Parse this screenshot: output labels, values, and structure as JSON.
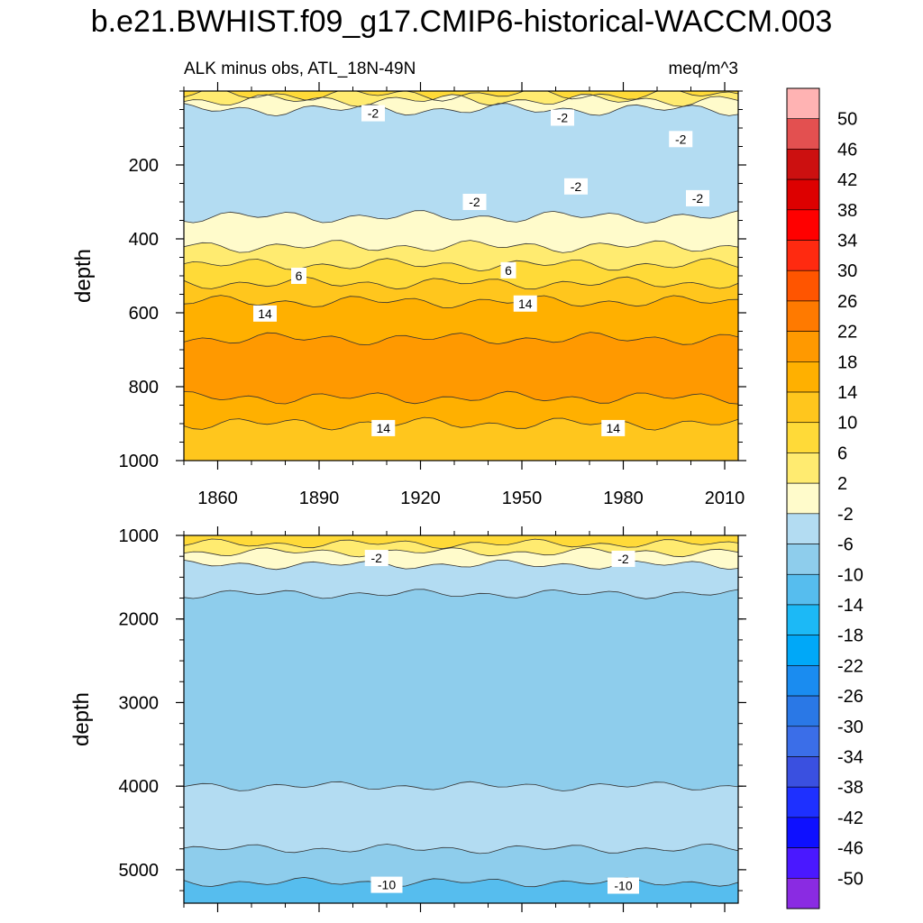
{
  "title": "b.e21.BWHIST.f09_g17.CMIP6-historical-WACCM.003",
  "chart_data": [
    {
      "type": "contour",
      "panel": "upper",
      "left_string": "ALK minus obs, ATL_18N-49N",
      "right_string": "meq/m^3",
      "ylabel": "depth",
      "xlim": [
        1850,
        2014
      ],
      "ylim": [
        1000,
        0
      ],
      "x_ticks": [
        1860,
        1890,
        1920,
        1950,
        1980,
        2010
      ],
      "y_ticks": [
        200,
        400,
        600,
        800,
        1000
      ],
      "bands": [
        {
          "top": 0,
          "bottom": 10,
          "fill": "#ffda38"
        },
        {
          "top": 10,
          "bottom": 25,
          "fill": "#ffeb70"
        },
        {
          "top": 25,
          "bottom": 50,
          "fill": "#fffbcb"
        },
        {
          "top": 50,
          "bottom": 340,
          "fill": "#b3dcf2"
        },
        {
          "top": 340,
          "bottom": 420,
          "fill": "#fffbcb"
        },
        {
          "top": 420,
          "bottom": 470,
          "fill": "#ffeb70"
        },
        {
          "top": 470,
          "bottom": 520,
          "fill": "#ffda38"
        },
        {
          "top": 520,
          "bottom": 570,
          "fill": "#ffc61d"
        },
        {
          "top": 570,
          "bottom": 670,
          "fill": "#ffb000"
        },
        {
          "top": 670,
          "bottom": 830,
          "fill": "#ff9900"
        },
        {
          "top": 830,
          "bottom": 900,
          "fill": "#ffb000"
        },
        {
          "top": 900,
          "bottom": 1000,
          "fill": "#ffc61d"
        }
      ],
      "contour_labels": [
        {
          "x": 1906,
          "y": 60,
          "text": "-2"
        },
        {
          "x": 1962,
          "y": 72,
          "text": "-2"
        },
        {
          "x": 1997,
          "y": 130,
          "text": "-2"
        },
        {
          "x": 1936,
          "y": 300,
          "text": "-2"
        },
        {
          "x": 1966,
          "y": 258,
          "text": "-2"
        },
        {
          "x": 2002,
          "y": 290,
          "text": "-2"
        },
        {
          "x": 1884,
          "y": 500,
          "text": "6"
        },
        {
          "x": 1946,
          "y": 485,
          "text": "6"
        },
        {
          "x": 1874,
          "y": 602,
          "text": "14"
        },
        {
          "x": 1951,
          "y": 575,
          "text": "14"
        },
        {
          "x": 1909,
          "y": 912,
          "text": "14"
        },
        {
          "x": 1977,
          "y": 912,
          "text": "14"
        }
      ]
    },
    {
      "type": "contour",
      "panel": "lower",
      "ylabel": "depth",
      "xlim": [
        1850,
        2014
      ],
      "ylim": [
        5400,
        1000
      ],
      "y_ticks": [
        1000,
        2000,
        3000,
        4000,
        5000
      ],
      "bands": [
        {
          "top": 1000,
          "bottom": 1100,
          "fill": "#ffda38"
        },
        {
          "top": 1100,
          "bottom": 1200,
          "fill": "#ffeb70"
        },
        {
          "top": 1200,
          "bottom": 1350,
          "fill": "#fffbcb"
        },
        {
          "top": 1350,
          "bottom": 1700,
          "fill": "#b3dcf2"
        },
        {
          "top": 1700,
          "bottom": 4000,
          "fill": "#8ecdec"
        },
        {
          "top": 4000,
          "bottom": 4750,
          "fill": "#b3dcf2"
        },
        {
          "top": 4750,
          "bottom": 5150,
          "fill": "#8ecdec"
        },
        {
          "top": 5150,
          "bottom": 5400,
          "fill": "#56bdee"
        }
      ],
      "contour_labels": [
        {
          "x": 1907,
          "y": 1270,
          "text": "-2"
        },
        {
          "x": 1980,
          "y": 1280,
          "text": "-2"
        },
        {
          "x": 1910,
          "y": 5180,
          "text": "-10"
        },
        {
          "x": 1980,
          "y": 5190,
          "text": "-10"
        }
      ]
    }
  ],
  "colorbar": {
    "labels": [
      "50",
      "46",
      "42",
      "38",
      "34",
      "30",
      "26",
      "22",
      "18",
      "14",
      "10",
      "6",
      "2",
      "-2",
      "-6",
      "-10",
      "-14",
      "-18",
      "-22",
      "-26",
      "-30",
      "-34",
      "-38",
      "-42",
      "-46",
      "-50"
    ],
    "colors": [
      "#ffb3b3",
      "#e35050",
      "#cc1010",
      "#dd0000",
      "#ff0000",
      "#ff2a10",
      "#ff5500",
      "#ff7a00",
      "#ff9900",
      "#ffb000",
      "#ffc61d",
      "#ffda38",
      "#ffeb70",
      "#fffbcb",
      "#b3dcf2",
      "#8ecdec",
      "#56bdee",
      "#1cb9f6",
      "#00a8f8",
      "#1a8cf0",
      "#2a78e6",
      "#3b6ee8",
      "#3a50e0",
      "#1e30ff",
      "#0e10ff",
      "#4a18ff",
      "#8a2be2"
    ]
  }
}
